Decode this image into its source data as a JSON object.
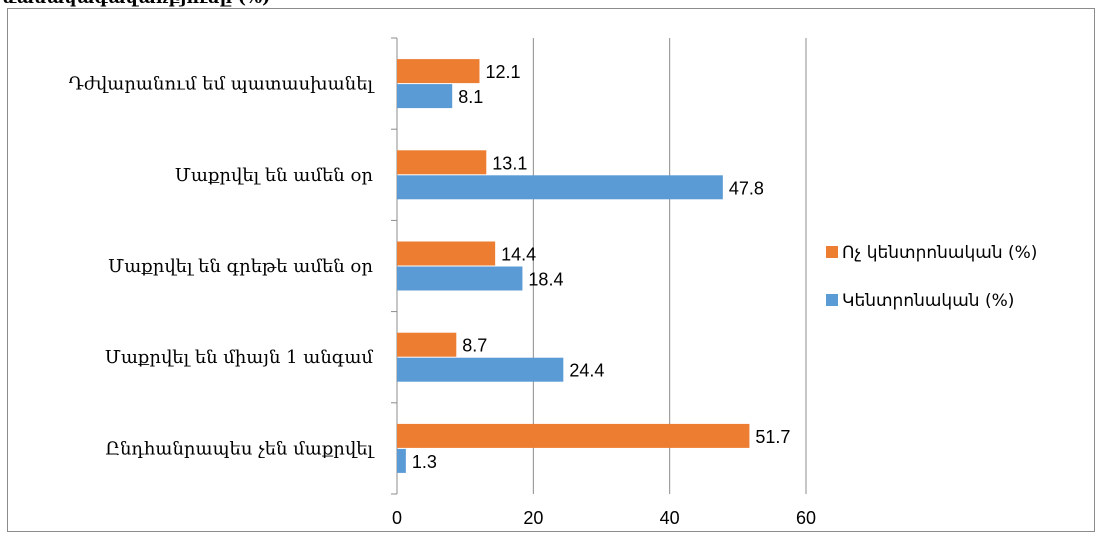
{
  "header": {
    "cut_title": "ևանակագավառբյունը (%)"
  },
  "chart_data": {
    "type": "bar",
    "orientation": "horizontal",
    "categories": [
      "Դժվարանում եմ պատասխանել",
      "Մաքրվել են ամեն օր",
      "Մաքրվել են գրեթե ամեն օր",
      "Մաքրվել են միայն 1 անգամ",
      "Ընդհանրապես չեն մաքրվել"
    ],
    "series": [
      {
        "name": "Ոչ կենտրոնական (%)",
        "color": "#ED7D31",
        "values": [
          12.1,
          13.1,
          14.4,
          8.7,
          51.7
        ]
      },
      {
        "name": "Կենտրոնական (%)",
        "color": "#5B9BD5",
        "values": [
          8.1,
          47.8,
          18.4,
          24.4,
          1.3
        ]
      }
    ],
    "xlim": [
      0,
      60
    ],
    "xticks": [
      0,
      20,
      40,
      60
    ],
    "grid": true,
    "legend_position": "right",
    "data_labels": true
  }
}
